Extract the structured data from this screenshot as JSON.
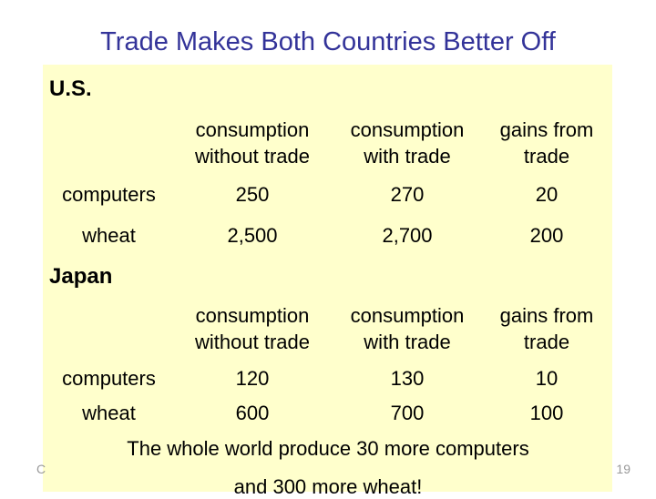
{
  "title": "Trade Makes Both Countries Better Off",
  "headers": {
    "col1_line1": "consumption",
    "col1_line2": "without trade",
    "col2_line1": "consumption",
    "col2_line2": "with trade",
    "col3_line1": "gains from",
    "col3_line2": "trade"
  },
  "us": {
    "name": "U.S.",
    "rows": [
      {
        "label": "computers",
        "without": "250",
        "with": "270",
        "gains": "20"
      },
      {
        "label": "wheat",
        "without": "2,500",
        "with": "2,700",
        "gains": "200"
      }
    ]
  },
  "japan": {
    "name": "Japan",
    "rows": [
      {
        "label": "computers",
        "without": "120",
        "with": "130",
        "gains": "10"
      },
      {
        "label": "wheat",
        "without": "600",
        "with": "700",
        "gains": "100"
      }
    ]
  },
  "footer": {
    "line1": "The whole world produce 30 more computers",
    "line2": "and 300 more wheat!"
  },
  "corner_left": "C",
  "page_number": "19",
  "colors": {
    "title": "#333399",
    "panel": "#ffffcc",
    "footer_gray": "#999999"
  }
}
